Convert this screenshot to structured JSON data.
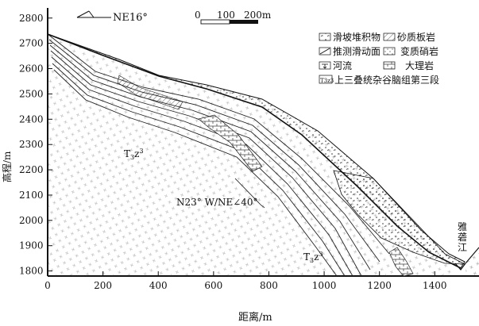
{
  "axes": {
    "y_label": "高程/m",
    "x_label": "距离/m",
    "y_ticks": [
      "2800",
      "2700",
      "2600",
      "2500",
      "2400",
      "2300",
      "2200",
      "2100",
      "2000",
      "1900",
      "1800"
    ],
    "x_ticks": [
      "0",
      "200",
      "400",
      "600",
      "800",
      "1000",
      "1200",
      "1400"
    ],
    "y_values": [
      2800,
      2700,
      2600,
      2500,
      2400,
      2300,
      2200,
      2100,
      2000,
      1900,
      1800
    ],
    "x_values": [
      0,
      200,
      400,
      600,
      800,
      1000,
      1200,
      1400
    ],
    "x_range": [
      0,
      1560
    ],
    "y_range": [
      1780,
      2840
    ]
  },
  "direction": {
    "text": "NE16°"
  },
  "scale_bar": {
    "t0": "0",
    "t1": "100",
    "t2": "200m"
  },
  "legend": {
    "items": [
      {
        "id": "landslide",
        "label": "滑坡堆积物",
        "icon": "landslide-deposit-icon"
      },
      {
        "id": "sandy_slate",
        "label": "砂质板岩",
        "icon": "sandy-slate-icon"
      },
      {
        "id": "slip",
        "label": "推测滑动面",
        "icon": "slip-surface-icon"
      },
      {
        "id": "meta_sand",
        "label": "变质硝岩",
        "icon": "metamorphic-sandstone-icon"
      },
      {
        "id": "river",
        "label": "河流",
        "icon": "river-icon"
      },
      {
        "id": "marble",
        "label": "大理岩",
        "icon": "marble-icon"
      },
      {
        "id": "t3z3",
        "label": "上三叠统杂谷脑组第三段",
        "icon": "t3z3-icon",
        "code": "T3z3"
      }
    ]
  },
  "labels": {
    "t3z3_main": "T",
    "t3z3_sub": "3",
    "t3z3_z": "z",
    "t3z3_sup": "3",
    "orientation": "N23° W/NE∠40°",
    "river_name": "雅砻江"
  }
}
